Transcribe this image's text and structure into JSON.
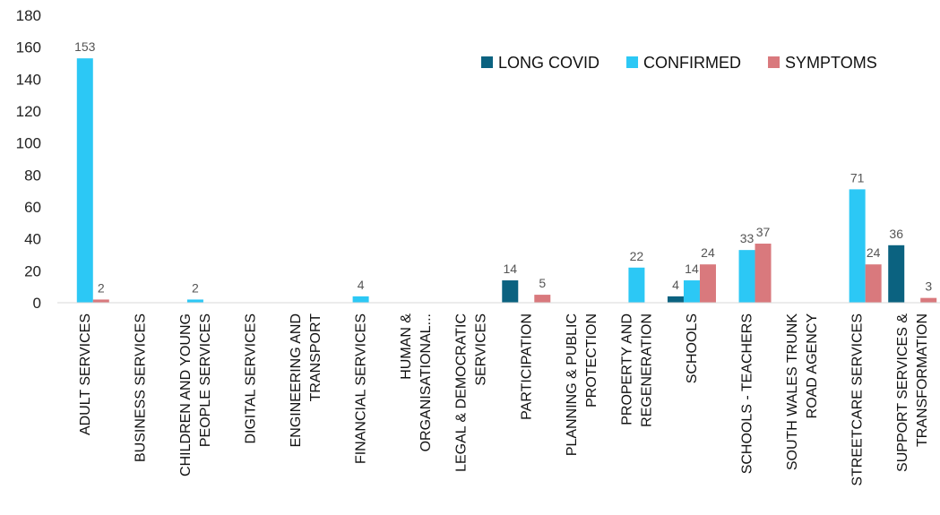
{
  "chart_data": {
    "type": "bar",
    "title": "",
    "xlabel": "",
    "ylabel": "",
    "ylim": [
      0,
      180
    ],
    "yticks": [
      0,
      20,
      40,
      60,
      80,
      100,
      120,
      140,
      160,
      180
    ],
    "grid": "none",
    "legend_position": "top-right",
    "categories": [
      [
        "ADULT SERVICES"
      ],
      [
        "BUSINESS SERVICES"
      ],
      [
        "CHILDREN AND YOUNG",
        "PEOPLE SERVICES"
      ],
      [
        "DIGITAL SERVICES"
      ],
      [
        "ENGINEERING AND",
        "TRANSPORT"
      ],
      [
        "FINANCIAL SERVICES"
      ],
      [
        "HUMAN &",
        "ORGANISATIONAL..."
      ],
      [
        "LEGAL & DEMOCRATIC",
        "SERVICES"
      ],
      [
        "PARTICIPATION"
      ],
      [
        "PLANNING & PUBLIC",
        "PROTECTION"
      ],
      [
        "PROPERTY AND",
        "REGENERATION"
      ],
      [
        "SCHOOLS"
      ],
      [
        "SCHOOLS - TEACHERS"
      ],
      [
        "SOUTH WALES TRUNK",
        "ROAD AGENCY"
      ],
      [
        "STREETCARE SERVICES"
      ],
      [
        "SUPPORT SERVICES &",
        "TRANSFORMATION"
      ]
    ],
    "series": [
      {
        "name": "LONG COVID",
        "color": "#0b6280",
        "values": [
          0,
          0,
          0,
          0,
          0,
          0,
          0,
          0,
          14,
          0,
          0,
          4,
          0,
          0,
          0,
          36
        ]
      },
      {
        "name": "CONFIRMED",
        "color": "#2cc8f5",
        "values": [
          153,
          0,
          2,
          0,
          0,
          4,
          0,
          0,
          0,
          0,
          22,
          14,
          33,
          0,
          71,
          0
        ]
      },
      {
        "name": "SYMPTOMS",
        "color": "#d9797d",
        "values": [
          2,
          0,
          0,
          0,
          0,
          0,
          0,
          0,
          5,
          0,
          0,
          24,
          37,
          0,
          24,
          3
        ]
      }
    ]
  }
}
